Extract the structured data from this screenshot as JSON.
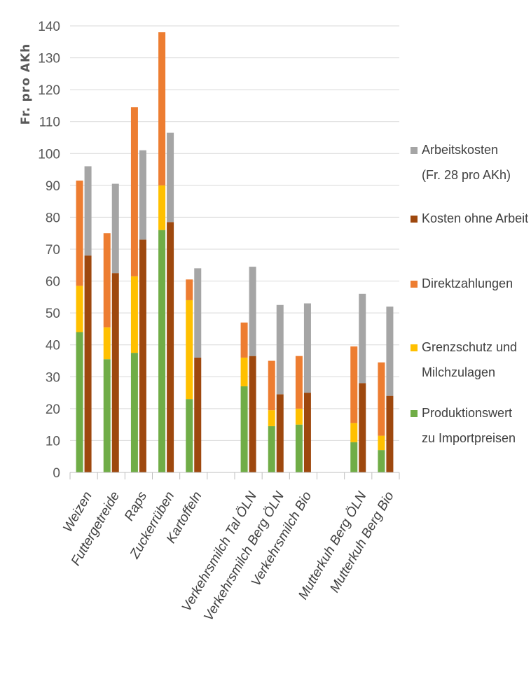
{
  "chart_data": {
    "type": "bar",
    "stacked": true,
    "ylabel": "Fr. pro AKh",
    "ylim": [
      0,
      140
    ],
    "ytick_step": 10,
    "grid": true,
    "legend_position": "right",
    "categories": [
      "Weizen",
      "Futtergetreide",
      "Raps",
      "Zuckerrüben",
      "Kartoffeln",
      "",
      "Verkehrsmilch Tal ÖLN",
      "Verkehrsmilch Berg ÖLN",
      "Verkehrsmilch Bio",
      "",
      "Mutterkuh Berg ÖLN",
      "Mutterkuh Berg Bio"
    ],
    "stacks": [
      {
        "stack": "revenue",
        "series": [
          {
            "name": "Produktionswert zu Importpreisen",
            "color": "#70AD47",
            "values": [
              44,
              35.5,
              37.5,
              76,
              23,
              null,
              27,
              14.5,
              15,
              null,
              9.5,
              7
            ]
          },
          {
            "name": "Grenzschutz und Milchzulagen",
            "color": "#FFC000",
            "values": [
              14.5,
              10,
              24,
              14,
              31,
              null,
              9,
              5,
              5,
              null,
              6,
              4.5
            ]
          },
          {
            "name": "Direktzahlungen",
            "color": "#ED7D31",
            "values": [
              33,
              29.5,
              53,
              48,
              6.5,
              null,
              11,
              15.5,
              16.5,
              null,
              24,
              23
            ]
          }
        ]
      },
      {
        "stack": "costs",
        "series": [
          {
            "name": "Kosten ohne Arbeit",
            "color": "#9E480E",
            "values": [
              68,
              62.5,
              73,
              78.5,
              36,
              null,
              36.5,
              24.5,
              25,
              null,
              28,
              24
            ]
          },
          {
            "name": "Arbeitskosten (Fr. 28 pro AKh)",
            "color": "#A5A5A5",
            "values": [
              28,
              28,
              28,
              28,
              28,
              null,
              28,
              28,
              28,
              null,
              28,
              28
            ]
          }
        ]
      }
    ],
    "legend": [
      {
        "lines": [
          "Arbeitskosten",
          "(Fr. 28 pro AKh)"
        ],
        "color": "#A5A5A5"
      },
      {
        "lines": [
          "Kosten ohne Arbeit"
        ],
        "color": "#9E480E"
      },
      {
        "lines": [
          "Direktzahlungen"
        ],
        "color": "#ED7D31"
      },
      {
        "lines": [
          "Grenzschutz und",
          "Milchzulagen"
        ],
        "color": "#FFC000"
      },
      {
        "lines": [
          "Produktionswert",
          "zu Importpreisen"
        ],
        "color": "#70AD47"
      }
    ]
  }
}
